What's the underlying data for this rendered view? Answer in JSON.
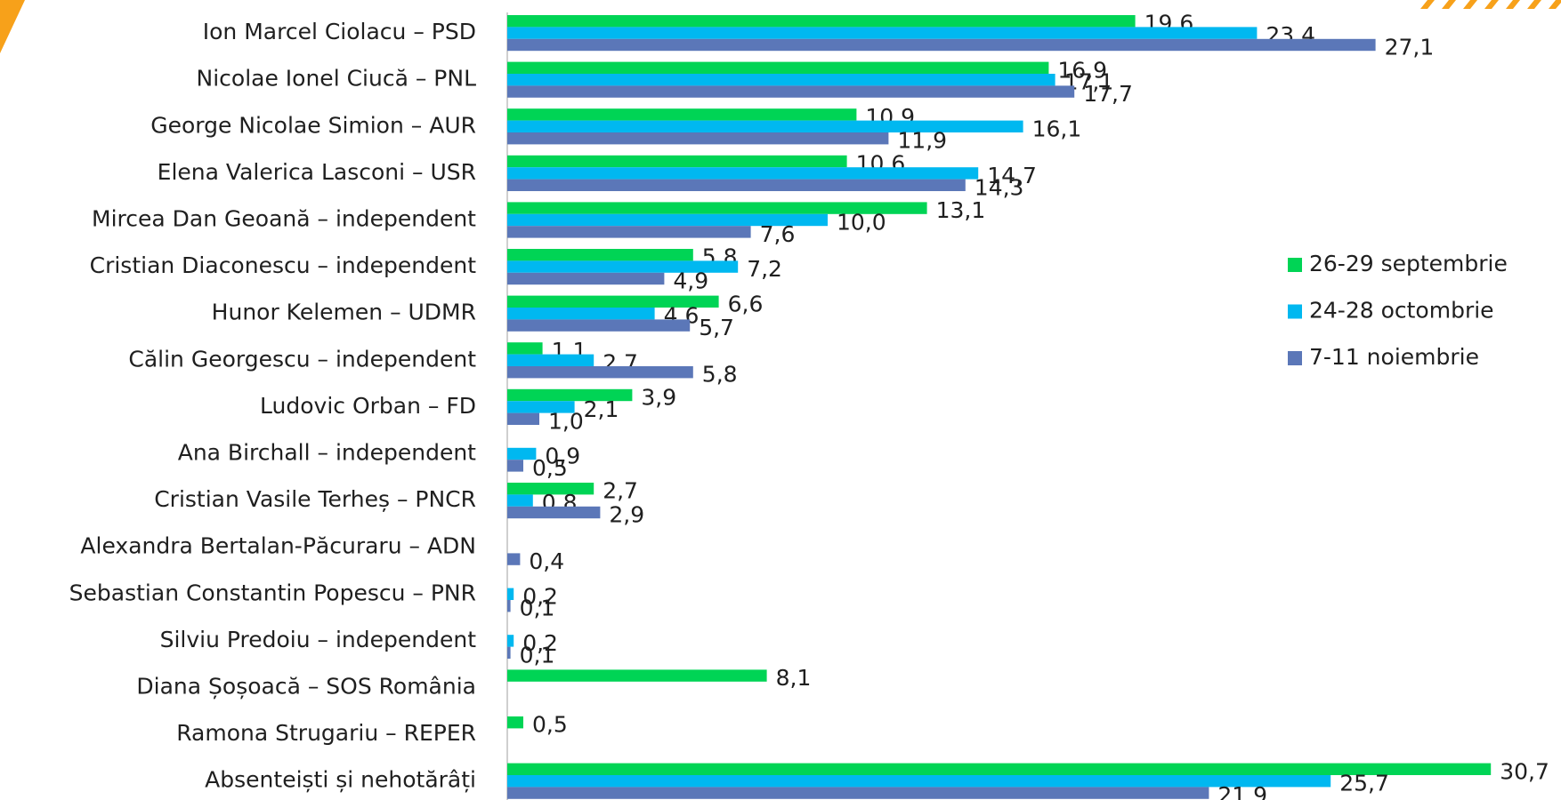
{
  "chart_data": {
    "type": "bar",
    "orientation": "horizontal",
    "categories": [
      "Ion Marcel Ciolacu – PSD",
      "Nicolae Ionel Ciucă – PNL",
      "George Nicolae Simion – AUR",
      "Elena Valerica Lasconi – USR",
      "Mircea Dan Geoană – independent",
      "Cristian Diaconescu – independent",
      "Hunor Kelemen – UDMR",
      "Călin Georgescu – independent",
      "Ludovic Orban – FD",
      "Ana Birchall – independent",
      "Cristian Vasile Terheș – PNCR",
      "Alexandra Bertalan-Păcuraru – ADN",
      "Sebastian Constantin Popescu – PNR",
      "Silviu Predoiu – independent",
      "Diana Șoșoacă – SOS România",
      "Ramona Strugariu – REPER",
      "Absenteiști și nehotărâți"
    ],
    "series": [
      {
        "name": "26-29 septembrie",
        "color": "#00d455",
        "values": [
          19.6,
          16.9,
          10.9,
          10.6,
          13.1,
          5.8,
          6.6,
          1.1,
          3.9,
          null,
          2.7,
          null,
          null,
          null,
          8.1,
          0.5,
          30.7
        ],
        "value_labels": [
          "19,6",
          "16,9",
          "10,9",
          "10,6",
          "13,1",
          "5,8",
          "6,6",
          "1,1",
          "3,9",
          null,
          "2,7",
          null,
          null,
          null,
          "8,1",
          "0,5",
          "30,7"
        ]
      },
      {
        "name": "24-28 octombrie",
        "color": "#00b8f0",
        "values": [
          23.4,
          17.1,
          16.1,
          14.7,
          10.0,
          7.2,
          4.6,
          2.7,
          2.1,
          0.9,
          0.8,
          null,
          0.2,
          0.2,
          null,
          null,
          25.7
        ],
        "value_labels": [
          "23,4",
          "17,1",
          "16,1",
          "14,7",
          "10,0",
          "7,2",
          "4,6",
          "2,7",
          "2,1",
          "0,9",
          "0,8",
          null,
          "0,2",
          "0,2",
          null,
          null,
          "25,7"
        ]
      },
      {
        "name": "7-11 noiembrie",
        "color": "#5b77b8",
        "values": [
          27.1,
          17.7,
          11.9,
          14.3,
          7.6,
          4.9,
          5.7,
          5.8,
          1.0,
          0.5,
          2.9,
          0.4,
          0.1,
          0.1,
          null,
          null,
          21.9
        ],
        "value_labels": [
          "27,1",
          "17,7",
          "11,9",
          "14,3",
          "7,6",
          "4,9",
          "5,7",
          "5,8",
          "1,0",
          "0,5",
          "2,9",
          "0,4",
          "0,1",
          "0,1",
          null,
          null,
          "21,9"
        ]
      }
    ],
    "legend": "right"
  }
}
